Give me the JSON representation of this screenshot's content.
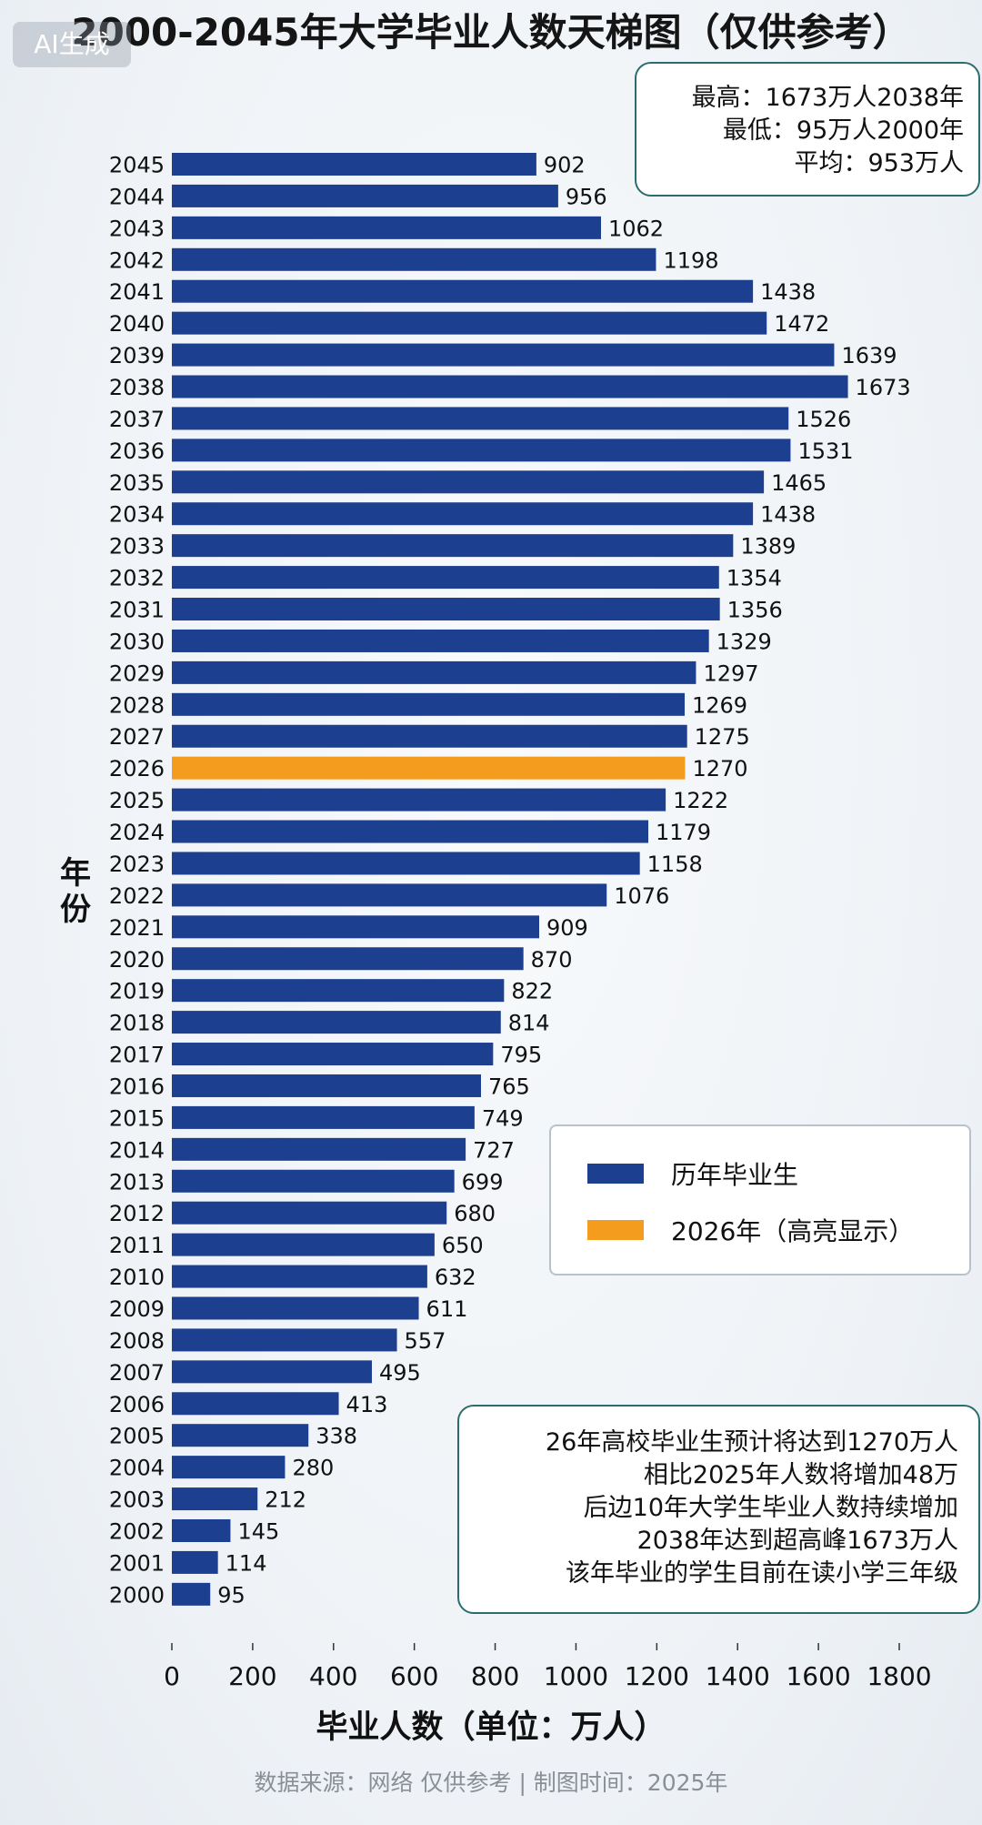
{
  "watermark": "AI生成",
  "stats": {
    "max": "最高：1673万人2038年",
    "min": "最低：95万人2000年",
    "avg": "平均：953万人"
  },
  "legend": {
    "items": [
      {
        "label": "历年毕业生",
        "color": "#1d3f8f"
      },
      {
        "label": "2026年（高亮显示）",
        "color": "#f49c1d"
      }
    ]
  },
  "note": {
    "lines": [
      "26年高校毕业生预计将达到1270万人",
      "相比2025年人数将增加48万",
      "后边10年大学生毕业人数持续增加",
      "2038年达到超高峰1673万人",
      "该年毕业的学生目前在读小学三年级"
    ]
  },
  "footer": "数据来源：网络  仅供参考  |  制图时间：2025年",
  "chart_data": {
    "type": "bar",
    "orientation": "horizontal",
    "title": "2000-2045年大学毕业人数天梯图（仅供参考）",
    "xlabel": "毕业人数（单位：万人）",
    "ylabel": "年份",
    "xlim": [
      0,
      1800
    ],
    "xticks": [
      0,
      200,
      400,
      600,
      800,
      1000,
      1200,
      1400,
      1600,
      1800
    ],
    "grid": false,
    "legend_position": "right",
    "highlight_category": "2026",
    "bar_color": "#1d3f8f",
    "highlight_color": "#f49c1d",
    "categories": [
      "2045",
      "2044",
      "2043",
      "2042",
      "2041",
      "2040",
      "2039",
      "2038",
      "2037",
      "2036",
      "2035",
      "2034",
      "2033",
      "2032",
      "2031",
      "2030",
      "2029",
      "2028",
      "2027",
      "2026",
      "2025",
      "2024",
      "2023",
      "2022",
      "2021",
      "2020",
      "2019",
      "2018",
      "2017",
      "2016",
      "2015",
      "2014",
      "2013",
      "2012",
      "2011",
      "2010",
      "2009",
      "2008",
      "2007",
      "2006",
      "2005",
      "2004",
      "2003",
      "2002",
      "2001",
      "2000"
    ],
    "values": [
      902,
      956,
      1062,
      1198,
      1438,
      1472,
      1639,
      1673,
      1526,
      1531,
      1465,
      1438,
      1389,
      1354,
      1356,
      1329,
      1297,
      1269,
      1275,
      1270,
      1222,
      1179,
      1158,
      1076,
      909,
      870,
      822,
      814,
      795,
      765,
      749,
      727,
      699,
      680,
      650,
      632,
      611,
      557,
      495,
      413,
      338,
      280,
      212,
      145,
      114,
      95
    ]
  }
}
